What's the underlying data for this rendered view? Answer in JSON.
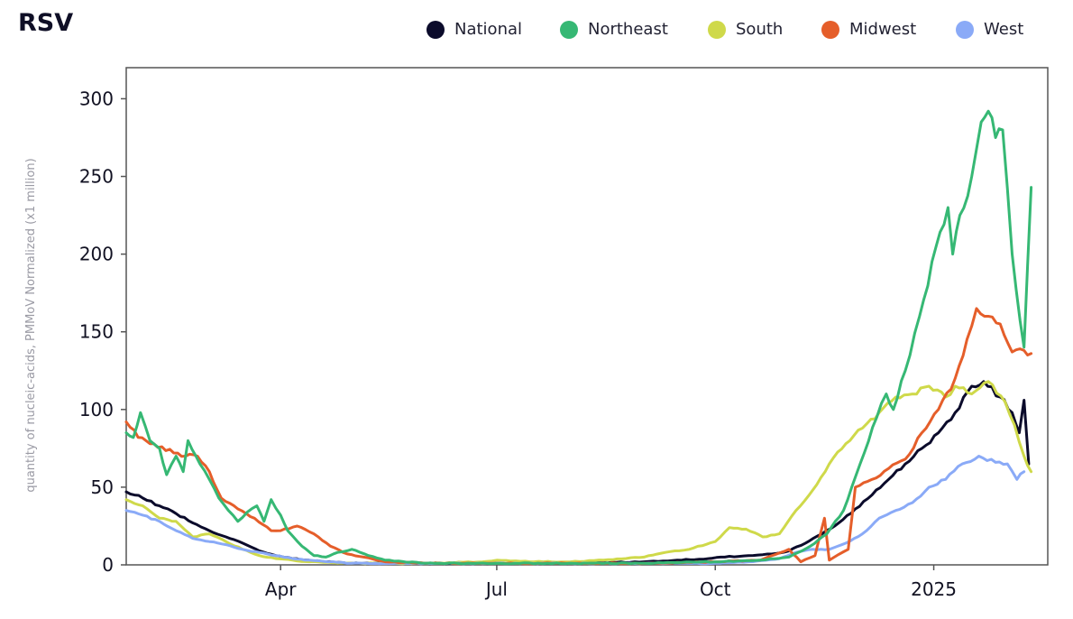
{
  "title": "RSV",
  "legend": [
    {
      "name": "National",
      "color": "#0b0b2b"
    },
    {
      "name": "Northeast",
      "color": "#36b874"
    },
    {
      "name": "South",
      "color": "#cfd94a"
    },
    {
      "name": "Midwest",
      "color": "#e55e2a"
    },
    {
      "name": "West",
      "color": "#8aaaf7"
    }
  ],
  "chart_data": {
    "type": "line",
    "title": "RSV",
    "ylabel": "quantity of nucleic-acids, PMMoV Normalized (x1 million)",
    "ylim": [
      0,
      320
    ],
    "xlim": [
      "2024-01-27",
      "2025-02-18"
    ],
    "yticks": [
      "0",
      "50",
      "100",
      "150",
      "200",
      "250",
      "300"
    ],
    "xticks": [
      {
        "label": "Apr",
        "date": "2024-04-01"
      },
      {
        "label": "Jul",
        "date": "2024-07-01"
      },
      {
        "label": "Oct",
        "date": "2024-10-01"
      },
      {
        "label": "2025",
        "date": "2025-01-01"
      }
    ],
    "grid": false,
    "legend_position": "top",
    "series": [
      {
        "name": "National",
        "color": "#0b0b2b",
        "points": [
          [
            "2024-01-27",
            47
          ],
          [
            "2024-02-03",
            43
          ],
          [
            "2024-02-10",
            38
          ],
          [
            "2024-02-17",
            33
          ],
          [
            "2024-02-24",
            27
          ],
          [
            "2024-03-02",
            22
          ],
          [
            "2024-03-09",
            18
          ],
          [
            "2024-03-16",
            14
          ],
          [
            "2024-03-23",
            9
          ],
          [
            "2024-03-30",
            6
          ],
          [
            "2024-04-06",
            4
          ],
          [
            "2024-04-13",
            3
          ],
          [
            "2024-04-20",
            2
          ],
          [
            "2024-05-01",
            1
          ],
          [
            "2024-06-01",
            1
          ],
          [
            "2024-07-01",
            1
          ],
          [
            "2024-08-01",
            1
          ],
          [
            "2024-09-01",
            2
          ],
          [
            "2024-09-15",
            3
          ],
          [
            "2024-09-28",
            4
          ],
          [
            "2024-10-05",
            5
          ],
          [
            "2024-10-15",
            6
          ],
          [
            "2024-10-25",
            7
          ],
          [
            "2024-11-01",
            9
          ],
          [
            "2024-11-08",
            14
          ],
          [
            "2024-11-15",
            20
          ],
          [
            "2024-11-22",
            27
          ],
          [
            "2024-11-29",
            36
          ],
          [
            "2024-12-06",
            45
          ],
          [
            "2024-12-13",
            55
          ],
          [
            "2024-12-20",
            65
          ],
          [
            "2024-12-27",
            75
          ],
          [
            "2025-01-03",
            85
          ],
          [
            "2025-01-10",
            98
          ],
          [
            "2025-01-17",
            115
          ],
          [
            "2025-01-22",
            118
          ],
          [
            "2025-01-29",
            108
          ],
          [
            "2025-02-03",
            98
          ],
          [
            "2025-02-06",
            85
          ],
          [
            "2025-02-08",
            106
          ],
          [
            "2025-02-10",
            65
          ]
        ]
      },
      {
        "name": "Northeast",
        "color": "#36b874",
        "points": [
          [
            "2024-01-27",
            85
          ],
          [
            "2024-01-30",
            82
          ],
          [
            "2024-02-02",
            98
          ],
          [
            "2024-02-06",
            80
          ],
          [
            "2024-02-10",
            75
          ],
          [
            "2024-02-13",
            58
          ],
          [
            "2024-02-17",
            70
          ],
          [
            "2024-02-20",
            60
          ],
          [
            "2024-02-22",
            80
          ],
          [
            "2024-02-27",
            65
          ],
          [
            "2024-03-02",
            55
          ],
          [
            "2024-03-06",
            43
          ],
          [
            "2024-03-10",
            35
          ],
          [
            "2024-03-14",
            28
          ],
          [
            "2024-03-18",
            34
          ],
          [
            "2024-03-22",
            38
          ],
          [
            "2024-03-25",
            28
          ],
          [
            "2024-03-28",
            42
          ],
          [
            "2024-04-01",
            32
          ],
          [
            "2024-04-04",
            22
          ],
          [
            "2024-04-10",
            12
          ],
          [
            "2024-04-15",
            6
          ],
          [
            "2024-04-20",
            5
          ],
          [
            "2024-04-25",
            8
          ],
          [
            "2024-05-01",
            10
          ],
          [
            "2024-05-08",
            6
          ],
          [
            "2024-05-15",
            3
          ],
          [
            "2024-06-01",
            1
          ],
          [
            "2024-07-01",
            1
          ],
          [
            "2024-08-01",
            1
          ],
          [
            "2024-09-01",
            1
          ],
          [
            "2024-10-01",
            2
          ],
          [
            "2024-10-20",
            3
          ],
          [
            "2024-11-01",
            5
          ],
          [
            "2024-11-10",
            12
          ],
          [
            "2024-11-17",
            20
          ],
          [
            "2024-11-24",
            35
          ],
          [
            "2024-12-01",
            65
          ],
          [
            "2024-12-08",
            95
          ],
          [
            "2024-12-12",
            110
          ],
          [
            "2024-12-15",
            100
          ],
          [
            "2024-12-20",
            125
          ],
          [
            "2024-12-26",
            160
          ],
          [
            "2025-01-02",
            205
          ],
          [
            "2025-01-07",
            230
          ],
          [
            "2025-01-09",
            200
          ],
          [
            "2025-01-12",
            225
          ],
          [
            "2025-01-17",
            250
          ],
          [
            "2025-01-21",
            285
          ],
          [
            "2025-01-24",
            292
          ],
          [
            "2025-01-27",
            275
          ],
          [
            "2025-01-30",
            280
          ],
          [
            "2025-02-03",
            200
          ],
          [
            "2025-02-08",
            140
          ],
          [
            "2025-02-11",
            243
          ]
        ]
      },
      {
        "name": "South",
        "color": "#cfd94a",
        "points": [
          [
            "2024-01-27",
            42
          ],
          [
            "2024-02-03",
            38
          ],
          [
            "2024-02-10",
            30
          ],
          [
            "2024-02-17",
            28
          ],
          [
            "2024-02-24",
            18
          ],
          [
            "2024-03-02",
            20
          ],
          [
            "2024-03-09",
            15
          ],
          [
            "2024-03-16",
            10
          ],
          [
            "2024-03-23",
            6
          ],
          [
            "2024-03-30",
            4
          ],
          [
            "2024-04-06",
            3
          ],
          [
            "2024-04-13",
            2
          ],
          [
            "2024-05-01",
            1
          ],
          [
            "2024-06-01",
            1
          ],
          [
            "2024-06-25",
            2
          ],
          [
            "2024-07-01",
            3
          ],
          [
            "2024-07-15",
            2
          ],
          [
            "2024-08-01",
            2
          ],
          [
            "2024-08-15",
            3
          ],
          [
            "2024-09-01",
            5
          ],
          [
            "2024-09-10",
            8
          ],
          [
            "2024-09-20",
            10
          ],
          [
            "2024-10-01",
            15
          ],
          [
            "2024-10-07",
            24
          ],
          [
            "2024-10-14",
            23
          ],
          [
            "2024-10-21",
            18
          ],
          [
            "2024-10-28",
            20
          ],
          [
            "2024-11-04",
            35
          ],
          [
            "2024-11-11",
            48
          ],
          [
            "2024-11-18",
            65
          ],
          [
            "2024-11-25",
            78
          ],
          [
            "2024-12-02",
            88
          ],
          [
            "2024-12-09",
            98
          ],
          [
            "2024-12-16",
            108
          ],
          [
            "2024-12-23",
            110
          ],
          [
            "2024-12-30",
            115
          ],
          [
            "2025-01-06",
            108
          ],
          [
            "2025-01-10",
            115
          ],
          [
            "2025-01-17",
            110
          ],
          [
            "2025-01-24",
            118
          ],
          [
            "2025-01-31",
            105
          ],
          [
            "2025-02-04",
            90
          ],
          [
            "2025-02-08",
            70
          ],
          [
            "2025-02-11",
            60
          ]
        ]
      },
      {
        "name": "Midwest",
        "color": "#e55e2a",
        "points": [
          [
            "2024-01-27",
            92
          ],
          [
            "2024-02-01",
            82
          ],
          [
            "2024-02-06",
            78
          ],
          [
            "2024-02-11",
            76
          ],
          [
            "2024-02-16",
            72
          ],
          [
            "2024-02-21",
            70
          ],
          [
            "2024-02-26",
            70
          ],
          [
            "2024-03-02",
            60
          ],
          [
            "2024-03-07",
            43
          ],
          [
            "2024-03-14",
            36
          ],
          [
            "2024-03-21",
            30
          ],
          [
            "2024-03-28",
            22
          ],
          [
            "2024-04-01",
            22
          ],
          [
            "2024-04-08",
            25
          ],
          [
            "2024-04-15",
            20
          ],
          [
            "2024-04-22",
            12
          ],
          [
            "2024-04-29",
            7
          ],
          [
            "2024-05-06",
            5
          ],
          [
            "2024-05-15",
            2
          ],
          [
            "2024-06-01",
            1
          ],
          [
            "2024-07-01",
            1
          ],
          [
            "2024-08-01",
            1
          ],
          [
            "2024-09-01",
            1
          ],
          [
            "2024-10-01",
            2
          ],
          [
            "2024-10-20",
            3
          ],
          [
            "2024-11-01",
            10
          ],
          [
            "2024-11-06",
            2
          ],
          [
            "2024-11-12",
            6
          ],
          [
            "2024-11-16",
            30
          ],
          [
            "2024-11-18",
            3
          ],
          [
            "2024-11-26",
            10
          ],
          [
            "2024-11-29",
            50
          ],
          [
            "2024-12-06",
            55
          ],
          [
            "2024-12-13",
            62
          ],
          [
            "2024-12-20",
            68
          ],
          [
            "2024-12-27",
            85
          ],
          [
            "2025-01-03",
            100
          ],
          [
            "2025-01-10",
            120
          ],
          [
            "2025-01-15",
            145
          ],
          [
            "2025-01-19",
            165
          ],
          [
            "2025-01-24",
            160
          ],
          [
            "2025-01-29",
            155
          ],
          [
            "2025-02-03",
            137
          ],
          [
            "2025-02-08",
            138
          ],
          [
            "2025-02-11",
            136
          ]
        ]
      },
      {
        "name": "West",
        "color": "#8aaaf7",
        "points": [
          [
            "2024-01-27",
            35
          ],
          [
            "2024-02-03",
            32
          ],
          [
            "2024-02-10",
            28
          ],
          [
            "2024-02-17",
            22
          ],
          [
            "2024-02-24",
            17
          ],
          [
            "2024-03-02",
            15
          ],
          [
            "2024-03-09",
            13
          ],
          [
            "2024-03-16",
            10
          ],
          [
            "2024-03-23",
            8
          ],
          [
            "2024-03-30",
            6
          ],
          [
            "2024-04-06",
            4
          ],
          [
            "2024-04-13",
            3
          ],
          [
            "2024-05-01",
            1
          ],
          [
            "2024-06-01",
            1
          ],
          [
            "2024-07-01",
            1
          ],
          [
            "2024-08-01",
            1
          ],
          [
            "2024-09-01",
            1
          ],
          [
            "2024-10-01",
            1
          ],
          [
            "2024-10-15",
            2
          ],
          [
            "2024-10-28",
            4
          ],
          [
            "2024-11-04",
            8
          ],
          [
            "2024-11-11",
            10
          ],
          [
            "2024-11-18",
            10
          ],
          [
            "2024-11-25",
            14
          ],
          [
            "2024-12-02",
            20
          ],
          [
            "2024-12-09",
            30
          ],
          [
            "2024-12-16",
            35
          ],
          [
            "2024-12-23",
            40
          ],
          [
            "2024-12-30",
            50
          ],
          [
            "2025-01-06",
            55
          ],
          [
            "2025-01-13",
            65
          ],
          [
            "2025-01-20",
            70
          ],
          [
            "2025-01-27",
            66
          ],
          [
            "2025-02-01",
            65
          ],
          [
            "2025-02-05",
            55
          ],
          [
            "2025-02-08",
            60
          ]
        ]
      }
    ]
  }
}
